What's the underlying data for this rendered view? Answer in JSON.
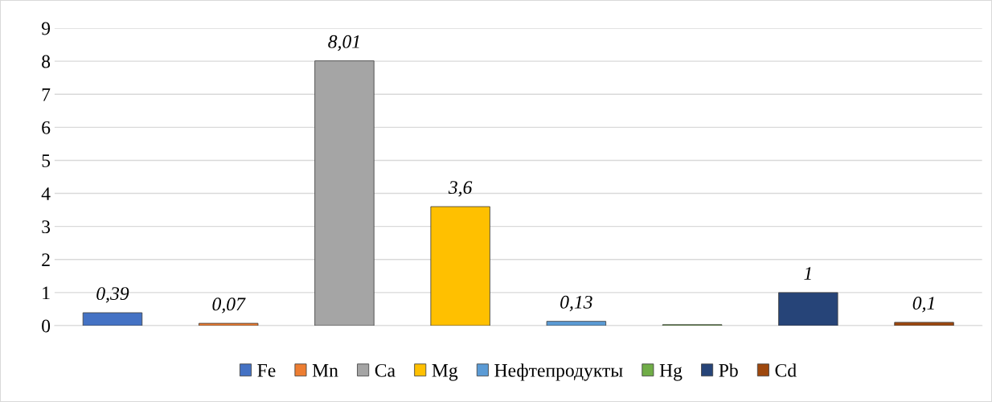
{
  "chart_data": {
    "type": "bar",
    "categories": [
      null
    ],
    "ylim": [
      0,
      9
    ],
    "yticks": [
      0,
      1,
      2,
      3,
      4,
      5,
      6,
      7,
      8,
      9
    ],
    "grid": "y",
    "legend": "bottom",
    "series": [
      {
        "name": "Fe",
        "color": "#4472c4",
        "values": [
          0.39
        ],
        "value_labels": [
          "0,39"
        ]
      },
      {
        "name": "Mn",
        "color": "#ed7d31",
        "values": [
          0.07
        ],
        "value_labels": [
          "0,07"
        ]
      },
      {
        "name": "Ca",
        "color": "#a5a5a5",
        "values": [
          8.01
        ],
        "value_labels": [
          "8,01"
        ]
      },
      {
        "name": "Mg",
        "color": "#ffc000",
        "values": [
          3.6
        ],
        "value_labels": [
          "3,6"
        ]
      },
      {
        "name": "Нефтепродукты",
        "color": "#5b9bd5",
        "values": [
          0.13
        ],
        "value_labels": [
          "0,13"
        ]
      },
      {
        "name": "Hg",
        "color": "#70ad47",
        "values": [
          0.03
        ],
        "value_labels": [
          null
        ]
      },
      {
        "name": "Pb",
        "color": "#264478",
        "values": [
          1
        ],
        "value_labels": [
          "1"
        ]
      },
      {
        "name": "Cd",
        "color": "#9e480e",
        "values": [
          0.1
        ],
        "value_labels": [
          "0,1"
        ]
      }
    ]
  }
}
